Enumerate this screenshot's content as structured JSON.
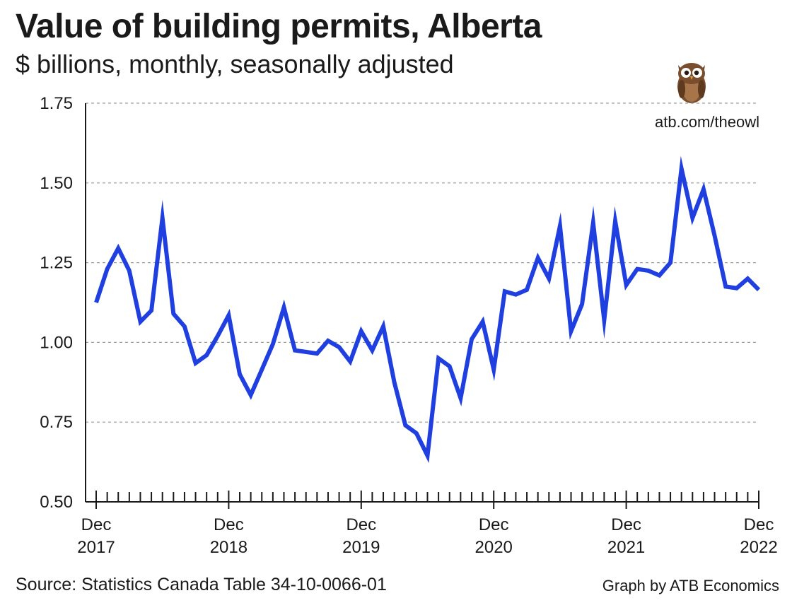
{
  "chart_data": {
    "type": "line",
    "title": "Value of building permits, Alberta",
    "subtitle": "$ billions, monthly, seasonally adjusted",
    "xlabel": "",
    "ylabel": "",
    "ylim": [
      0.5,
      1.75
    ],
    "yticks": [
      "0.50",
      "0.75",
      "1.00",
      "1.25",
      "1.50",
      "1.75"
    ],
    "ytick_values": [
      0.5,
      0.75,
      1.0,
      1.25,
      1.5,
      1.75
    ],
    "grid": true,
    "xtick_labels": [
      {
        "line1": "Dec",
        "line2": "2017",
        "index": 0
      },
      {
        "line1": "Dec",
        "line2": "2018",
        "index": 12
      },
      {
        "line1": "Dec",
        "line2": "2019",
        "index": 24
      },
      {
        "line1": "Dec",
        "line2": "2020",
        "index": 36
      },
      {
        "line1": "Dec",
        "line2": "2021",
        "index": 48
      },
      {
        "line1": "Dec",
        "line2": "2022",
        "index": 60
      }
    ],
    "series": [
      {
        "name": "Value of building permits",
        "color": "#1f3fe0",
        "values": [
          1.125,
          1.23,
          1.295,
          1.225,
          1.065,
          1.1,
          1.39,
          1.09,
          1.05,
          0.935,
          0.96,
          1.02,
          1.085,
          0.9,
          0.835,
          0.915,
          0.995,
          1.11,
          0.975,
          0.97,
          0.965,
          1.005,
          0.985,
          0.94,
          1.035,
          0.975,
          1.05,
          0.875,
          0.74,
          0.715,
          0.645,
          0.95,
          0.925,
          0.825,
          1.01,
          1.065,
          0.915,
          1.16,
          1.15,
          1.165,
          1.265,
          1.2,
          1.365,
          1.035,
          1.12,
          1.375,
          1.07,
          1.38,
          1.18,
          1.23,
          1.225,
          1.21,
          1.25,
          1.545,
          1.39,
          1.48,
          1.335,
          1.175,
          1.17,
          1.2,
          1.165
        ]
      }
    ]
  },
  "branding": {
    "owl_url": "atb.com/theowl",
    "source": "Source: Statistics Canada Table 34-10-0066-01",
    "credit": "Graph by ATB Economics",
    "owl_icon": "owl-icon"
  },
  "colors": {
    "line": "#1f3fe0",
    "grid": "#9a9a9a",
    "axis": "#1a1a1a",
    "owl_body": "#7a4e2d"
  }
}
